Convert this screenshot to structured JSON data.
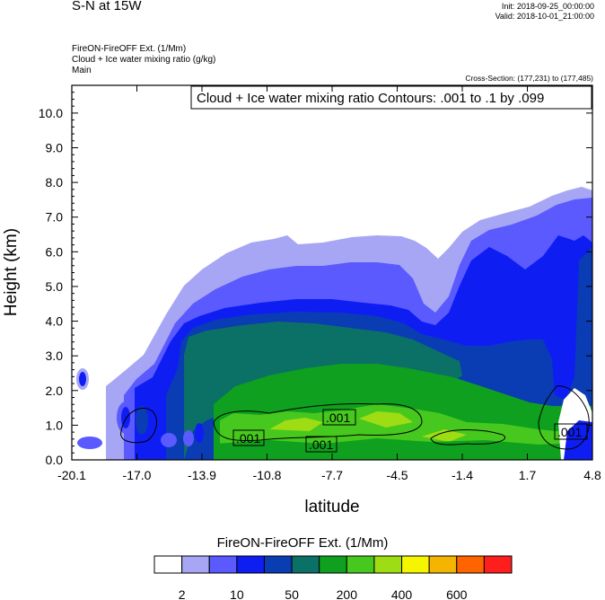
{
  "header": {
    "title": "S-N at 15W",
    "init": "Init: 2018-09-25_00:00:00",
    "valid": "Valid: 2018-10-01_21:00:00",
    "left_lines": [
      "FireON-FireOFF Ext.   (1/Mm)",
      "Cloud + Ice water mixing ratio   (g/kg)",
      "Main"
    ],
    "cross_section": "Cross-Section: (177,231) to (177,485)"
  },
  "chart_data": {
    "type": "heatmap",
    "xlabel": "latitude",
    "ylabel": "Height (km)",
    "x_ticks": [
      "-20.1",
      "-17.0",
      "-13.9",
      "-10.8",
      "-7.7",
      "-4.5",
      "-1.4",
      "1.7",
      "4.8"
    ],
    "y_ticks": [
      "0.0",
      "1.0",
      "2.0",
      "3.0",
      "4.0",
      "5.0",
      "6.0",
      "7.0",
      "8.0",
      "9.0",
      "10.0"
    ],
    "xlim": [
      -20.1,
      4.8
    ],
    "ylim": [
      0,
      10.8
    ],
    "contour_label": "Cloud + Ice water mixing ratio Contours: .001 to .1 by .099",
    "contour_levels": [
      ".001",
      ".001",
      ".001",
      ".001"
    ],
    "colorbar": {
      "title": "FireON-FireOFF Ext.  (1/Mm)",
      "labels": [
        "2",
        "10",
        "50",
        "200",
        "400",
        "600"
      ],
      "colors": [
        "#ffffff",
        "#a6a6f5",
        "#5a5aff",
        "#0e1ef2",
        "#0a3cb4",
        "#0b7066",
        "#0ea01e",
        "#46c81e",
        "#9edc14",
        "#f5f500",
        "#f5b400",
        "#ff6400",
        "#ff1e1e"
      ]
    }
  }
}
